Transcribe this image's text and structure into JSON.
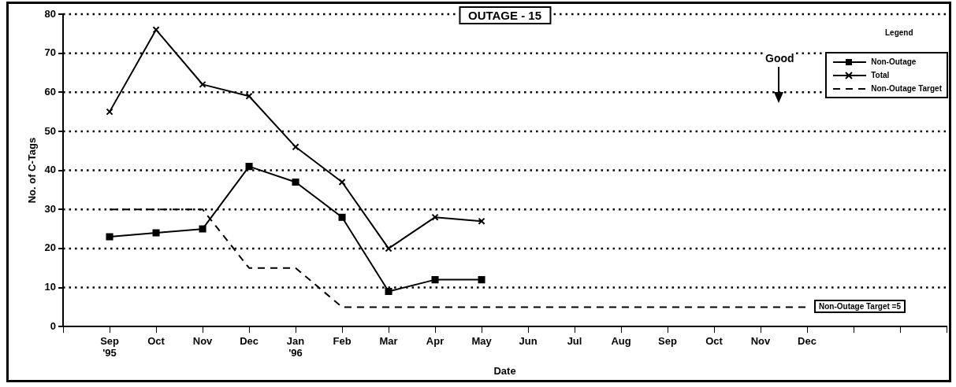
{
  "chart_data": {
    "type": "line",
    "title": "OUTAGE - 15",
    "xlabel": "Date",
    "ylabel": "No. of C-Tags",
    "legend_title": "Legend",
    "categories": [
      null,
      "Sep\n'95",
      "Oct",
      "Nov",
      "Dec",
      "Jan\n'96",
      "Feb",
      "Mar",
      "Apr",
      "May",
      "Jun",
      "Jul",
      "Aug",
      "Sep",
      "Oct",
      "Nov",
      "Dec",
      null,
      null,
      null
    ],
    "series": [
      {
        "name": "Non-Outage",
        "color": "#000000",
        "marker": "square",
        "line_style": "solid",
        "values": [
          null,
          23,
          24,
          25,
          41,
          37,
          28,
          9,
          12,
          12,
          null,
          null,
          null,
          null,
          null,
          null,
          null,
          null,
          null,
          null
        ]
      },
      {
        "name": "Total",
        "color": "#000000",
        "marker": "cross",
        "line_style": "solid",
        "values": [
          null,
          55,
          76,
          62,
          59,
          46,
          37,
          20,
          28,
          27,
          null,
          null,
          null,
          null,
          null,
          null,
          null,
          null,
          null,
          null
        ]
      },
      {
        "name": "Non-Outage Target",
        "color": "#000000",
        "marker": "none",
        "line_style": "dashed",
        "values": [
          null,
          30,
          30,
          30,
          15,
          15,
          5,
          5,
          5,
          5,
          5,
          5,
          5,
          5,
          5,
          5,
          5,
          null,
          null,
          null
        ]
      }
    ],
    "ylim": [
      0,
      80
    ],
    "yticks": [
      0,
      10,
      20,
      30,
      40,
      50,
      60,
      70,
      80
    ],
    "grid": "y",
    "legend": "top right",
    "annotations": [
      "Non-Outage Target =5",
      "Good"
    ]
  }
}
